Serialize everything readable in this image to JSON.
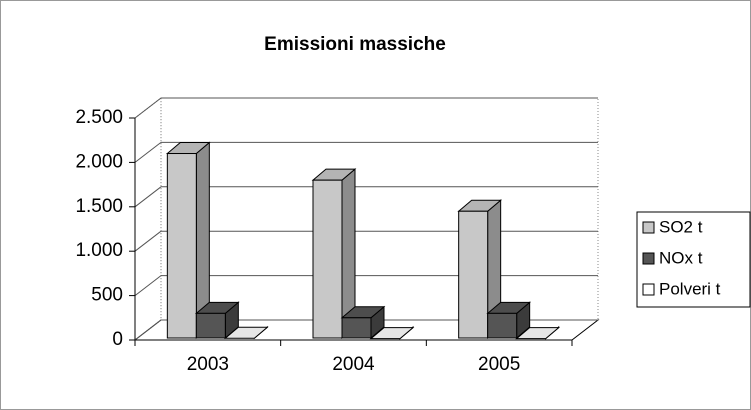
{
  "chart_data": {
    "type": "bar3d",
    "title": "Emissioni massiche",
    "categories": [
      "2003",
      "2004",
      "2005"
    ],
    "series": [
      {
        "name": "SO2 t",
        "color": "#c8c8c8",
        "values": [
          2100,
          1800,
          1450
        ]
      },
      {
        "name": "NOx t",
        "color": "#555555",
        "values": [
          300,
          250,
          300
        ]
      },
      {
        "name": "Polveri t",
        "color": "#ffffff",
        "values": [
          20,
          15,
          15
        ]
      }
    ],
    "ylim": [
      0,
      2500
    ],
    "yticks": [
      0,
      500,
      {
        "value": 1000,
        "label": "1.000"
      },
      {
        "value": 1500,
        "label": "1.500"
      },
      {
        "value": 2000,
        "label": "2.000"
      },
      {
        "value": 2500,
        "label": "2.500"
      }
    ],
    "grid": true,
    "legend": "right"
  }
}
